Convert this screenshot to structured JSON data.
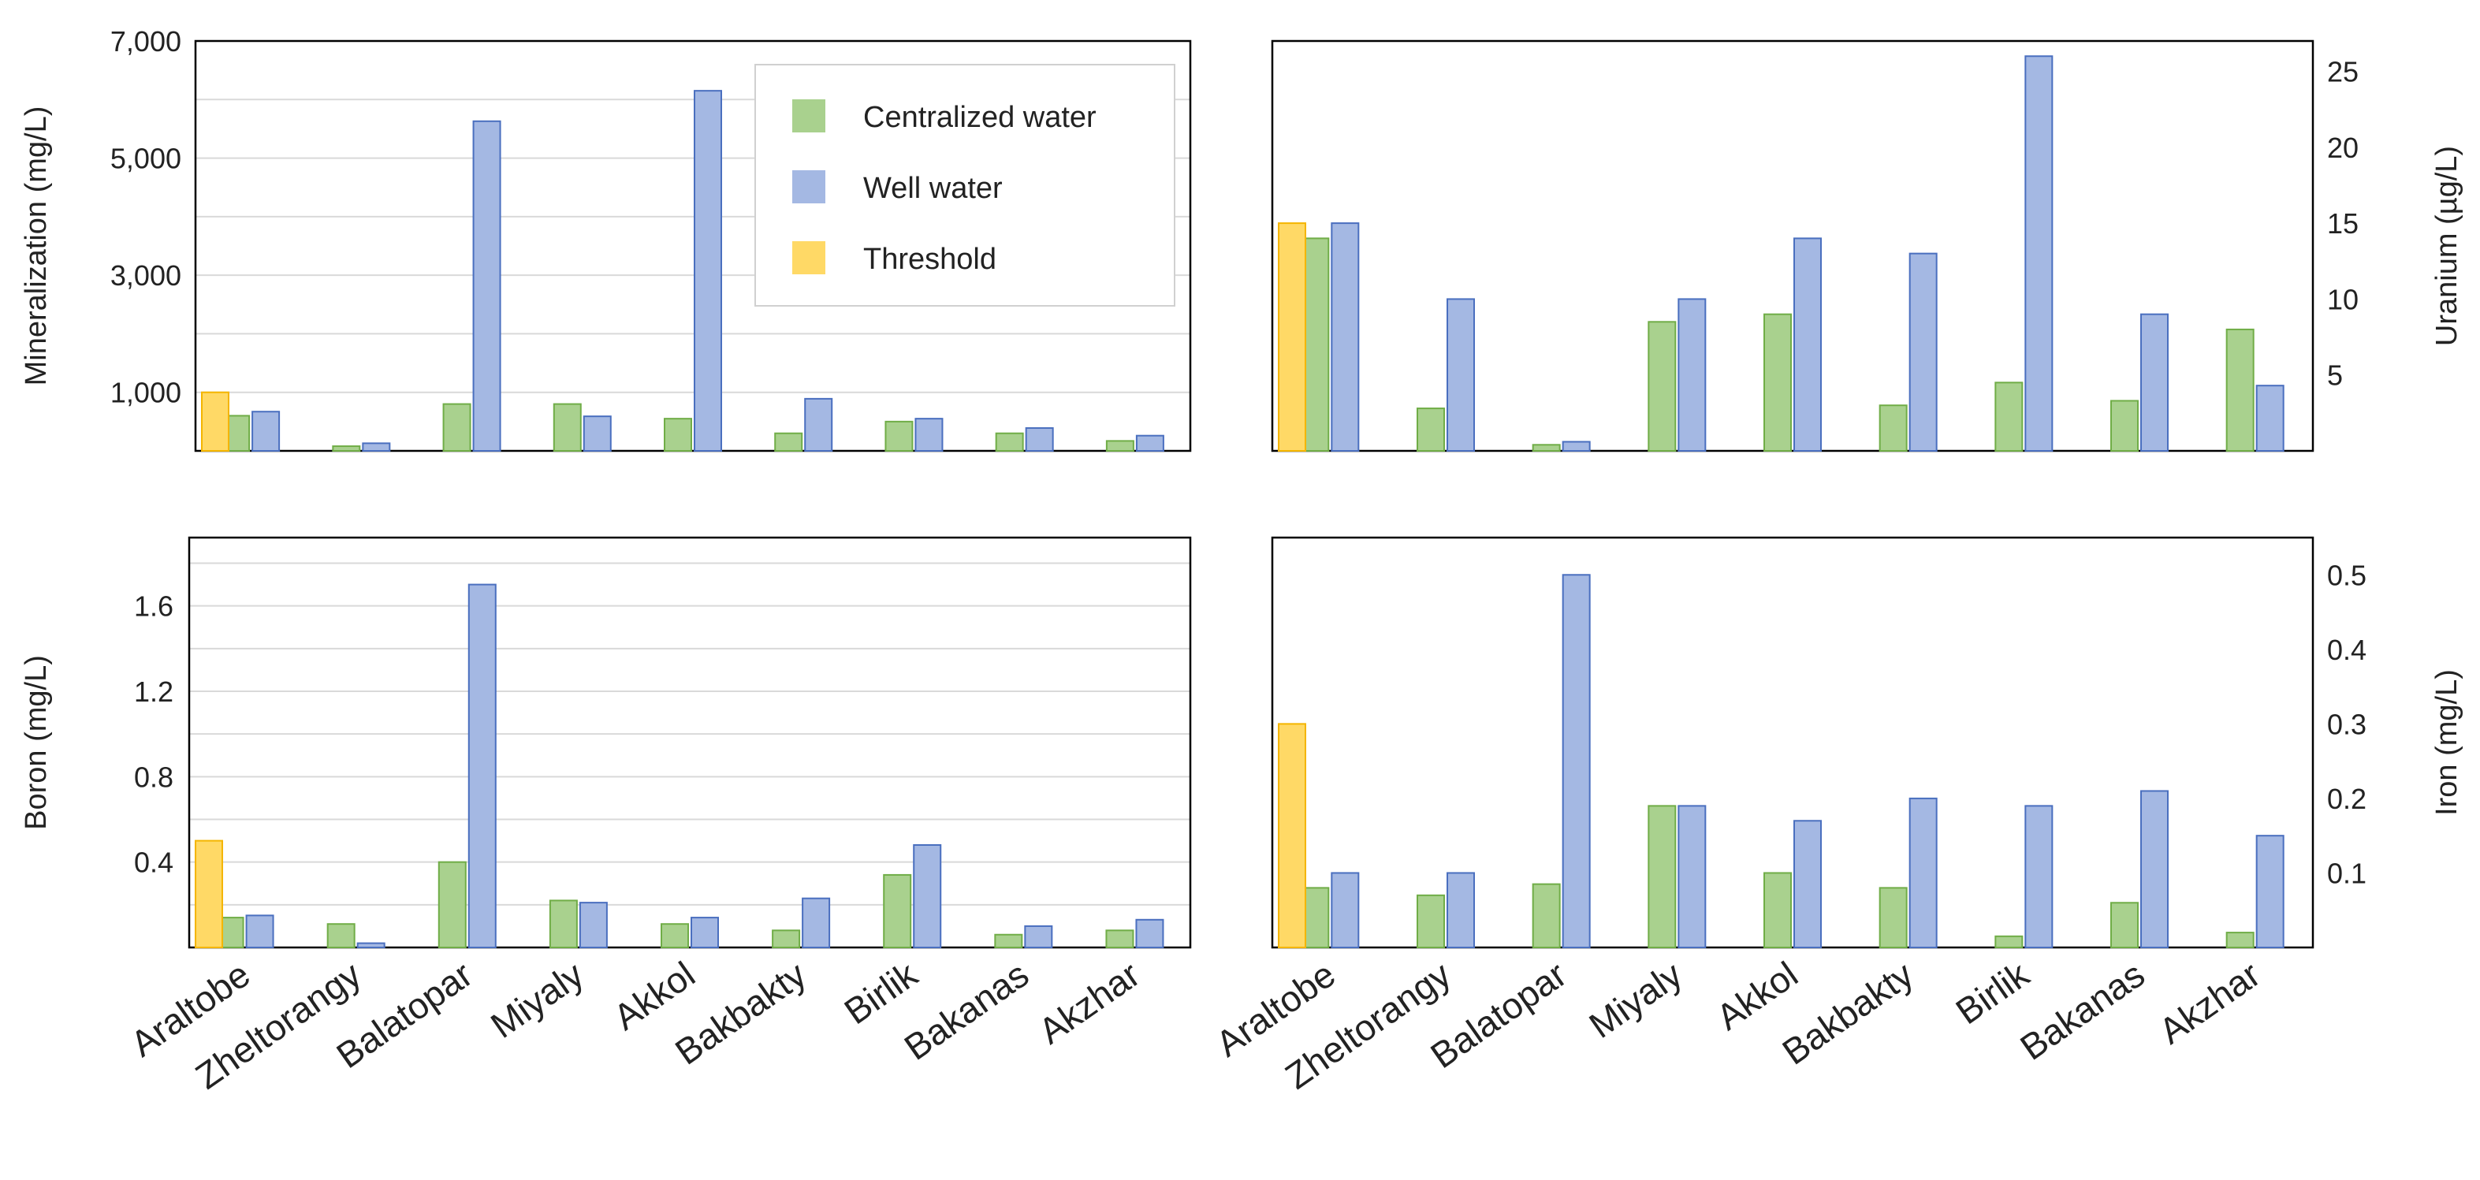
{
  "figure": {
    "categories": [
      "Araltobe",
      "Zheltorangy",
      "Balatopar",
      "Miyaly",
      "Akkol",
      "Bakbakty",
      "Birlik",
      "Bakanas",
      "Akzhar"
    ],
    "colors": {
      "centralized_fill": "#a9d18e",
      "centralized_stroke": "#70ad47",
      "well_fill": "#a4b8e3",
      "well_stroke": "#4a6fbf",
      "threshold_fill": "#ffd966",
      "threshold_stroke": "#f4b500",
      "grid": "#d9d9d9",
      "frame": "#000000"
    }
  },
  "legend": {
    "items": [
      {
        "label": "Centralized water",
        "color": "#a9d18e"
      },
      {
        "label": "Well water",
        "color": "#a4b8e3"
      },
      {
        "label": "Threshold",
        "color": "#ffd966"
      }
    ]
  },
  "chart_data": [
    {
      "type": "bar",
      "id": "mineralization",
      "ylabel": "Mineralization (mg/L)",
      "ylim": [
        0,
        7000
      ],
      "yticks": [
        1000,
        3000,
        5000,
        7000
      ],
      "ytick_labels": [
        "1,000",
        "3,000",
        "5,000",
        "7,000"
      ],
      "gridlines": [
        1000,
        2000,
        3000,
        4000,
        5000,
        6000,
        7000
      ],
      "yaxis_side": "left",
      "threshold": 1000,
      "categories": [
        "Araltobe",
        "Zheltorangy",
        "Balatopar",
        "Miyaly",
        "Akkol",
        "Bakbakty",
        "Birlik",
        "Bakanas",
        "Akzhar"
      ],
      "series": [
        {
          "name": "Centralized water",
          "values": [
            600,
            80,
            800,
            800,
            550,
            300,
            500,
            300,
            170
          ]
        },
        {
          "name": "Well water",
          "values": [
            670,
            130,
            5630,
            590,
            6150,
            890,
            550,
            390,
            260
          ]
        }
      ]
    },
    {
      "type": "bar",
      "id": "uranium",
      "ylabel": "Uranium (µg/L)",
      "ylim": [
        0,
        27
      ],
      "yticks": [
        5,
        10,
        15,
        20,
        25
      ],
      "ytick_labels": [
        "5",
        "10",
        "15",
        "20",
        "25"
      ],
      "gridlines": [],
      "yaxis_side": "right",
      "threshold": 15,
      "categories": [
        "Araltobe",
        "Zheltorangy",
        "Balatopar",
        "Miyaly",
        "Akkol",
        "Bakbakty",
        "Birlik",
        "Bakanas",
        "Akzhar"
      ],
      "series": [
        {
          "name": "Centralized water",
          "values": [
            14,
            2.8,
            0.4,
            8.5,
            9,
            3,
            4.5,
            3.3,
            8
          ]
        },
        {
          "name": "Well water",
          "values": [
            15,
            10,
            0.6,
            10,
            14,
            13,
            26,
            9,
            4.3
          ]
        }
      ]
    },
    {
      "type": "bar",
      "id": "boron",
      "ylabel": "Boron (mg/L)",
      "ylim": [
        0,
        1.92
      ],
      "yticks": [
        0.4,
        0.8,
        1.2,
        1.6
      ],
      "ytick_labels": [
        "0.4",
        "0.8",
        "1.2",
        "1.6"
      ],
      "gridlines": [
        0.2,
        0.4,
        0.6,
        0.8,
        1.0,
        1.2,
        1.4,
        1.6,
        1.8
      ],
      "yaxis_side": "left",
      "threshold": 0.5,
      "categories": [
        "Araltobe",
        "Zheltorangy",
        "Balatopar",
        "Miyaly",
        "Akkol",
        "Bakbakty",
        "Birlik",
        "Bakanas",
        "Akzhar"
      ],
      "series": [
        {
          "name": "Centralized water",
          "values": [
            0.14,
            0.11,
            0.4,
            0.22,
            0.11,
            0.08,
            0.34,
            0.06,
            0.08
          ]
        },
        {
          "name": "Well water",
          "values": [
            0.15,
            0.02,
            1.7,
            0.21,
            0.14,
            0.23,
            0.48,
            0.1,
            0.13
          ]
        }
      ]
    },
    {
      "type": "bar",
      "id": "iron",
      "ylabel": "Iron (mg/L)",
      "ylim": [
        0,
        0.55
      ],
      "yticks": [
        0.1,
        0.2,
        0.3,
        0.4,
        0.5
      ],
      "ytick_labels": [
        "0.1",
        "0.2",
        "0.3",
        "0.4",
        "0.5"
      ],
      "gridlines": [],
      "yaxis_side": "right",
      "threshold": 0.3,
      "categories": [
        "Araltobe",
        "Zheltorangy",
        "Balatopar",
        "Miyaly",
        "Akkol",
        "Bakbakty",
        "Birlik",
        "Bakanas",
        "Akzhar"
      ],
      "series": [
        {
          "name": "Centralized water",
          "values": [
            0.08,
            0.07,
            0.085,
            0.19,
            0.1,
            0.08,
            0.015,
            0.06,
            0.02
          ]
        },
        {
          "name": "Well water",
          "values": [
            0.1,
            0.1,
            0.5,
            0.19,
            0.17,
            0.2,
            0.19,
            0.21,
            0.15
          ]
        }
      ]
    }
  ]
}
